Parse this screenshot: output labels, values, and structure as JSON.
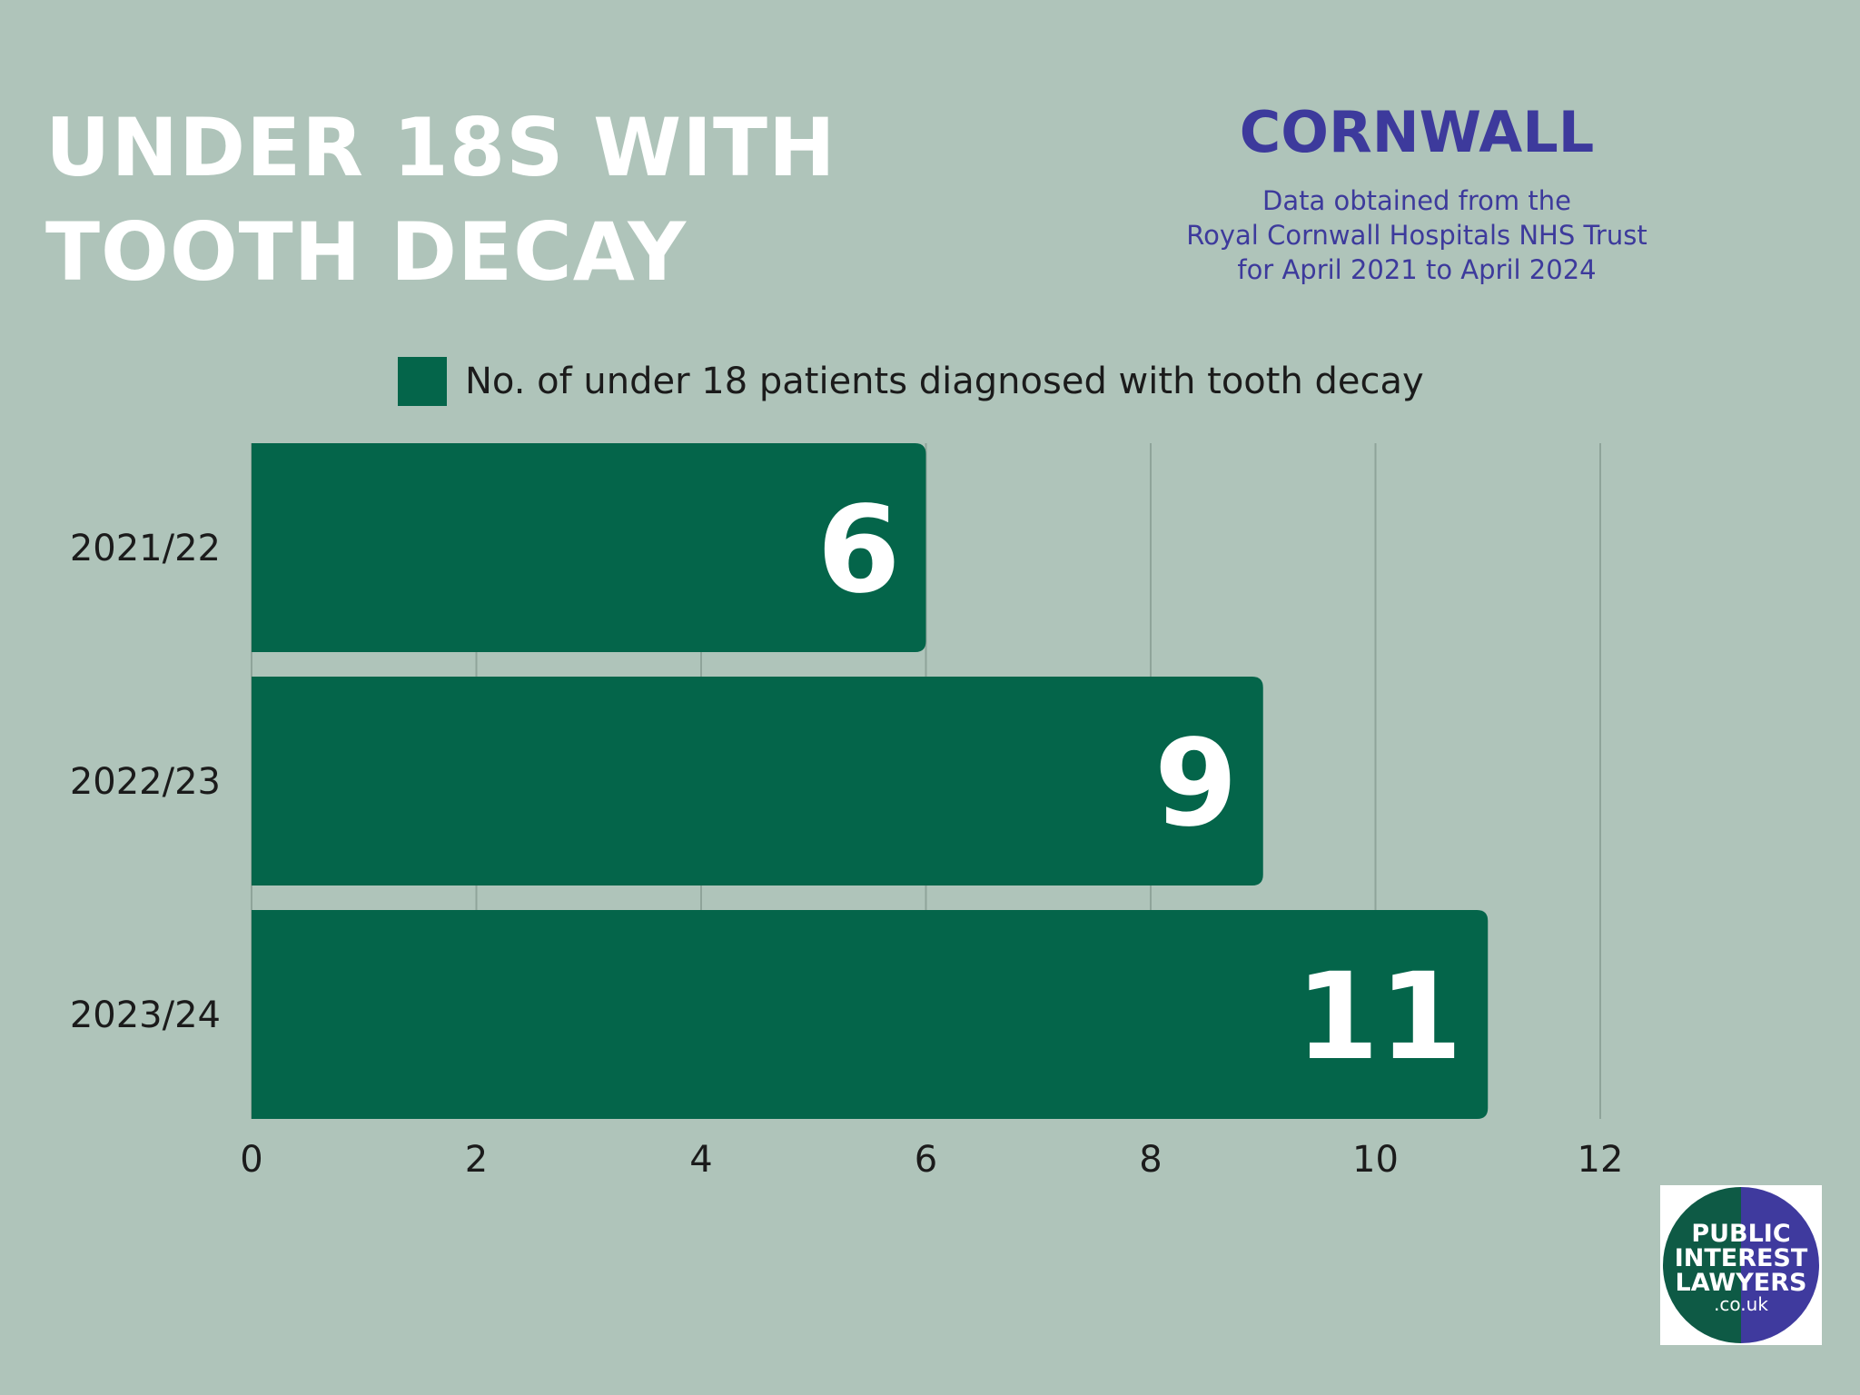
{
  "header": {
    "title_lines": [
      "UNDER 18S WITH",
      "TOOTH DECAY"
    ],
    "region": "CORNWALL",
    "source_lines": [
      "Data obtained from the",
      "Royal Cornwall Hospitals NHS Trust",
      "for April 2021 to April 2024"
    ]
  },
  "logo": {
    "lines": [
      "PUBLIC",
      "INTEREST",
      "LAWYERS",
      ".co.uk"
    ]
  },
  "colors": {
    "background": "#afc4ba",
    "bar": "#04654a",
    "accent": "#3d3a9c",
    "gridline": "#8fa49a"
  },
  "chart_data": {
    "type": "bar",
    "orientation": "horizontal",
    "categories": [
      "2021/22",
      "2022/23",
      "2023/24"
    ],
    "series": [
      {
        "name": "No. of under 18 patients diagnosed with tooth decay",
        "values": [
          6,
          9,
          11
        ]
      }
    ],
    "data_labels": [
      "6",
      "9",
      "11"
    ],
    "xlim": [
      0,
      12
    ],
    "x_ticks": [
      "0",
      "2",
      "4",
      "6",
      "8",
      "10",
      "12"
    ],
    "grid": true,
    "legend_position": "top"
  }
}
